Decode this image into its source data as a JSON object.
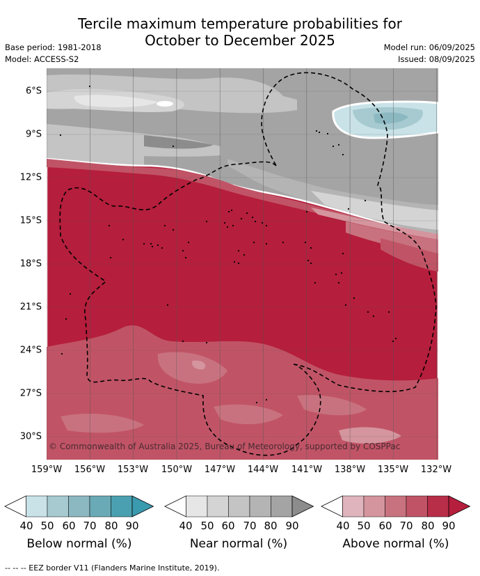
{
  "title": {
    "line1": "Tercile maximum temperature probabilities for",
    "line2": "October to December 2025"
  },
  "meta_left": {
    "base_period": "Base period: 1981-2018",
    "model": "Model: ACCESS-S2"
  },
  "meta_right": {
    "model_run": "Model run: 06/09/2025",
    "issued": "Issued: 08/09/2025"
  },
  "map": {
    "lat_labels": [
      "6°S",
      "9°S",
      "12°S",
      "15°S",
      "18°S",
      "21°S",
      "24°S",
      "27°S",
      "30°S"
    ],
    "lon_labels": [
      "159°W",
      "156°W",
      "153°W",
      "150°W",
      "147°W",
      "144°W",
      "141°W",
      "138°W",
      "135°W",
      "132°W"
    ],
    "credit": "© Commonwealth of Australia 2025, Bureau of Meteorology, supported by COSPPac",
    "colors": {
      "gray_levels": [
        "#e6e6e6",
        "#d4d4d4",
        "#c4c4c4",
        "#b4b4b4",
        "#a4a4a4",
        "#8c8c8c"
      ],
      "blue_levels": [
        "#c8e2e8",
        "#a6cad0",
        "#8cb8c2",
        "#6aaab6",
        "#4aa0b0"
      ],
      "red_levels": [
        "#dfb4bc",
        "#d5959e",
        "#c9727f",
        "#c05466",
        "#b51e3c"
      ]
    }
  },
  "colorbars": {
    "ticks": [
      "40",
      "50",
      "60",
      "70",
      "80",
      "90"
    ],
    "below": {
      "label": "Below normal (%)",
      "colors": [
        "#c8e2e8",
        "#a6cad0",
        "#8cb8c2",
        "#6aaab6",
        "#4aa0b0",
        "#3a9aae"
      ]
    },
    "near": {
      "label": "Near normal (%)",
      "colors": [
        "#e6e6e6",
        "#d4d4d4",
        "#c4c4c4",
        "#b4b4b4",
        "#a4a4a4",
        "#8c8c8c"
      ]
    },
    "above": {
      "label": "Above normal (%)",
      "colors": [
        "#dfb4bc",
        "#d5959e",
        "#c9727f",
        "#c05466",
        "#b82d48",
        "#b51e3c"
      ]
    }
  },
  "eez_note": "--  --  -- EEZ border V11 (Flanders Marine Institute, 2019)."
}
